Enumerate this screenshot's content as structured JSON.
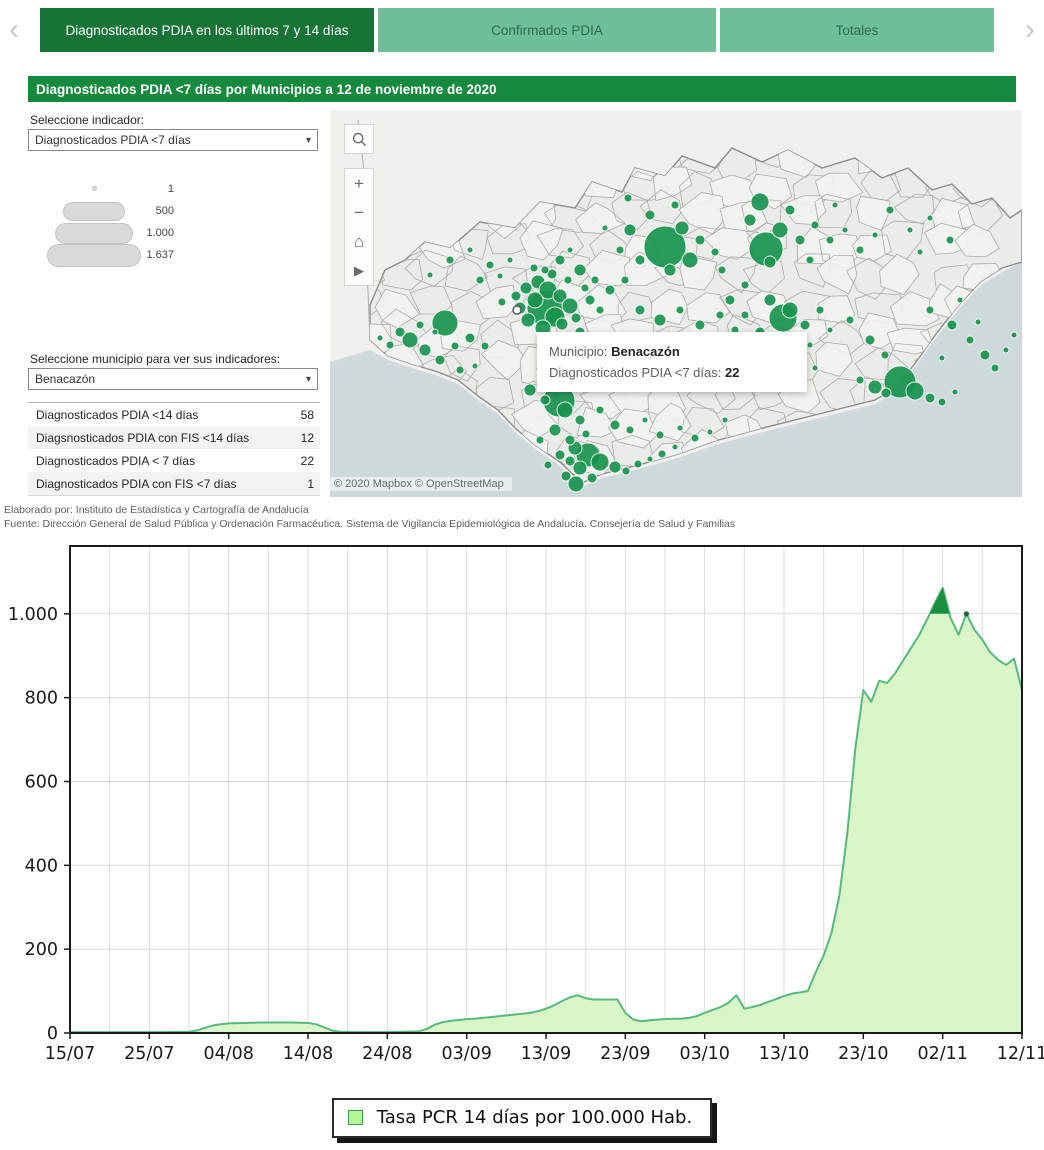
{
  "theme": {
    "header_green": "#15893d",
    "tab_active_bg": "#177436",
    "tab_inactive_bg": "#6fbf9b",
    "bubble_green": "#18944e",
    "sea_color": "#cdd9db",
    "land_color": "#ebebe9"
  },
  "tabs": {
    "prev_icon": "‹",
    "next_icon": "›",
    "items": [
      {
        "label": "Diagnosticados PDIA en los últimos 7 y 14 días",
        "active": true
      },
      {
        "label": "Confirmados PDIA",
        "active": false
      },
      {
        "label": "Totales",
        "active": false
      }
    ]
  },
  "panel_header": {
    "title": "Diagnosticados PDIA <7 días por Municipios a 12 de noviembre de 2020"
  },
  "sidebar": {
    "indicator_label": "Seleccione indicador:",
    "indicator_value": "Diagnosticados PDIA <7 días",
    "dropdown_arrow": "▾",
    "size_legend": [
      {
        "label": "1"
      },
      {
        "label": "500"
      },
      {
        "label": "1.000"
      },
      {
        "label": "1.637"
      }
    ],
    "municipio_label": "Seleccione municipio para ver sus indicadores:",
    "municipio_value": "Benacazón",
    "indicators_table": [
      {
        "label": "Diagnosticados PDIA <14 días",
        "value": "58"
      },
      {
        "label": "Diagsnosticados PDIA con FIS <14 días",
        "value": "12"
      },
      {
        "label": "Diagnosticados PDIA < 7 días",
        "value": "22"
      },
      {
        "label": "Diagnosticados PDIA con FIS <7 días",
        "value": "1"
      }
    ]
  },
  "map": {
    "tooltip": {
      "line1_label": "Municipio: ",
      "line1_value": "Benacazón",
      "line2_label": "Diagnosticados PDIA <7 días: ",
      "line2_value": "22"
    },
    "attribution": "© 2020 Mapbox  © OpenStreetMap",
    "controls": {
      "zoom_in": "+",
      "zoom_out": "−",
      "home": "⌂",
      "next": "▶"
    },
    "selected_bubble": [
      187,
      200,
      4
    ],
    "bubbles": [
      [
        335,
        137,
        21
      ],
      [
        436,
        139,
        17
      ],
      [
        453,
        208,
        14
      ],
      [
        570,
        272,
        16
      ],
      [
        215,
        198,
        18
      ],
      [
        229,
        291,
        16
      ],
      [
        115,
        213,
        13
      ],
      [
        196,
        178,
        6
      ],
      [
        208,
        172,
        7
      ],
      [
        218,
        180,
        9
      ],
      [
        230,
        186,
        7
      ],
      [
        205,
        190,
        8
      ],
      [
        190,
        198,
        6
      ],
      [
        240,
        196,
        8
      ],
      [
        225,
        207,
        10
      ],
      [
        198,
        210,
        7
      ],
      [
        213,
        218,
        8
      ],
      [
        232,
        214,
        6
      ],
      [
        246,
        208,
        5
      ],
      [
        186,
        186,
        5
      ],
      [
        172,
        192,
        4
      ],
      [
        250,
        222,
        5
      ],
      [
        238,
        228,
        4
      ],
      [
        220,
        230,
        5
      ],
      [
        260,
        190,
        5
      ],
      [
        255,
        178,
        4
      ],
      [
        270,
        200,
        4
      ],
      [
        204,
        158,
        4
      ],
      [
        222,
        164,
        5
      ],
      [
        238,
        170,
        4
      ],
      [
        300,
        120,
        6
      ],
      [
        320,
        105,
        5
      ],
      [
        352,
        118,
        7
      ],
      [
        360,
        150,
        8
      ],
      [
        340,
        160,
        6
      ],
      [
        310,
        150,
        5
      ],
      [
        290,
        140,
        4
      ],
      [
        370,
        130,
        5
      ],
      [
        385,
        142,
        4
      ],
      [
        345,
        95,
        4
      ],
      [
        298,
        88,
        4
      ],
      [
        275,
        118,
        3
      ],
      [
        420,
        110,
        6
      ],
      [
        450,
        120,
        8
      ],
      [
        470,
        130,
        5
      ],
      [
        485,
        115,
        4
      ],
      [
        460,
        100,
        5
      ],
      [
        440,
        152,
        6
      ],
      [
        480,
        150,
        4
      ],
      [
        500,
        130,
        4
      ],
      [
        515,
        120,
        3
      ],
      [
        430,
        92,
        9
      ],
      [
        530,
        140,
        4
      ],
      [
        545,
        125,
        3
      ],
      [
        560,
        100,
        4
      ],
      [
        580,
        120,
        3
      ],
      [
        600,
        108,
        3
      ],
      [
        620,
        130,
        4
      ],
      [
        590,
        142,
        3
      ],
      [
        505,
        95,
        3
      ],
      [
        440,
        190,
        6
      ],
      [
        460,
        200,
        8
      ],
      [
        475,
        215,
        5
      ],
      [
        490,
        200,
        4
      ],
      [
        430,
        222,
        5
      ],
      [
        465,
        230,
        4
      ],
      [
        500,
        220,
        3
      ],
      [
        520,
        210,
        4
      ],
      [
        540,
        230,
        5
      ],
      [
        555,
        245,
        4
      ],
      [
        415,
        205,
        4
      ],
      [
        480,
        235,
        3
      ],
      [
        600,
        200,
        4
      ],
      [
        622,
        215,
        5
      ],
      [
        640,
        230,
        4
      ],
      [
        655,
        245,
        5
      ],
      [
        665,
        258,
        4
      ],
      [
        630,
        190,
        3
      ],
      [
        612,
        248,
        3
      ],
      [
        648,
        212,
        3
      ],
      [
        676,
        240,
        3
      ],
      [
        684,
        225,
        3
      ],
      [
        545,
        277,
        7
      ],
      [
        556,
        283,
        5
      ],
      [
        585,
        281,
        9
      ],
      [
        600,
        288,
        5
      ],
      [
        612,
        292,
        4
      ],
      [
        530,
        270,
        4
      ],
      [
        625,
        282,
        3
      ],
      [
        258,
        345,
        12
      ],
      [
        270,
        352,
        9
      ],
      [
        245,
        338,
        7
      ],
      [
        285,
        357,
        6
      ],
      [
        296,
        361,
        4
      ],
      [
        240,
        351,
        5
      ],
      [
        308,
        354,
        4
      ],
      [
        320,
        349,
        3
      ],
      [
        332,
        344,
        4
      ],
      [
        345,
        337,
        3
      ],
      [
        300,
        320,
        4
      ],
      [
        315,
        310,
        3
      ],
      [
        330,
        325,
        4
      ],
      [
        285,
        315,
        5
      ],
      [
        270,
        300,
        4
      ],
      [
        350,
        318,
        3
      ],
      [
        365,
        328,
        4
      ],
      [
        380,
        322,
        3
      ],
      [
        395,
        310,
        3
      ],
      [
        200,
        280,
        6
      ],
      [
        215,
        290,
        5
      ],
      [
        235,
        300,
        8
      ],
      [
        250,
        310,
        5
      ],
      [
        225,
        320,
        6
      ],
      [
        210,
        330,
        4
      ],
      [
        240,
        330,
        5
      ],
      [
        256,
        324,
        4
      ],
      [
        230,
        345,
        5
      ],
      [
        218,
        355,
        4
      ],
      [
        250,
        358,
        7
      ],
      [
        262,
        368,
        5
      ],
      [
        246,
        374,
        8
      ],
      [
        236,
        366,
        5
      ],
      [
        80,
        230,
        8
      ],
      [
        95,
        240,
        6
      ],
      [
        110,
        250,
        5
      ],
      [
        70,
        222,
        5
      ],
      [
        60,
        235,
        4
      ],
      [
        125,
        236,
        4
      ],
      [
        140,
        228,
        5
      ],
      [
        155,
        236,
        4
      ],
      [
        90,
        215,
        4
      ],
      [
        105,
        222,
        3
      ],
      [
        130,
        260,
        4
      ],
      [
        145,
        256,
        3
      ],
      [
        50,
        228,
        3
      ],
      [
        120,
        150,
        4
      ],
      [
        140,
        140,
        3
      ],
      [
        160,
        155,
        4
      ],
      [
        100,
        165,
        3
      ],
      [
        180,
        150,
        3
      ],
      [
        150,
        170,
        4
      ],
      [
        170,
        166,
        3
      ],
      [
        230,
        150,
        5
      ],
      [
        250,
        160,
        6
      ],
      [
        265,
        170,
        4
      ],
      [
        280,
        180,
        5
      ],
      [
        295,
        170,
        4
      ],
      [
        215,
        160,
        4
      ],
      [
        240,
        140,
        3
      ],
      [
        310,
        200,
        5
      ],
      [
        330,
        210,
        6
      ],
      [
        350,
        200,
        4
      ],
      [
        370,
        215,
        5
      ],
      [
        390,
        205,
        4
      ],
      [
        405,
        220,
        4
      ],
      [
        310,
        230,
        4
      ],
      [
        335,
        235,
        5
      ],
      [
        360,
        240,
        4
      ],
      [
        385,
        235,
        3
      ],
      [
        400,
        190,
        5
      ],
      [
        415,
        175,
        4
      ],
      [
        392,
        160,
        4
      ],
      [
        260,
        240,
        4
      ],
      [
        280,
        250,
        5
      ],
      [
        300,
        260,
        4
      ],
      [
        320,
        268,
        4
      ],
      [
        340,
        262,
        3
      ],
      [
        360,
        268,
        4
      ],
      [
        380,
        260,
        3
      ],
      [
        420,
        250,
        4
      ],
      [
        440,
        258,
        3
      ],
      [
        460,
        252,
        4
      ],
      [
        485,
        258,
        3
      ]
    ]
  },
  "footer_notes": {
    "line1": "Elaborado por: Instituto de Estadística y Cartografía de Andalucía",
    "line2": "Fuente: Dirección General de Salud Pública y Ordenación Farmacéutica. Sistema de Vigilancia Epidemiológica de Andalucía. Consejería de Salud y Familias"
  },
  "chart_data": {
    "type": "area",
    "title": "",
    "xlabel": "",
    "ylabel": "",
    "x_tick_labels": [
      "15/07",
      "25/07",
      "04/08",
      "14/08",
      "24/08",
      "03/09",
      "13/09",
      "23/09",
      "03/10",
      "13/10",
      "23/10",
      "02/11",
      "12/11"
    ],
    "x_tick_days": [
      0,
      10,
      20,
      30,
      40,
      50,
      60,
      70,
      80,
      90,
      100,
      110,
      120
    ],
    "minor_grid_step_days": 5,
    "y_ticks": [
      0,
      200,
      400,
      600,
      800,
      1000
    ],
    "y_tick_labels": [
      "0",
      "200",
      "400",
      "600",
      "800",
      "1.000"
    ],
    "ylim": [
      0,
      1162
    ],
    "grid": true,
    "legend_position": "bottom",
    "series": [
      {
        "name": "Tasa PCR 14 días por 100.000 Hab.",
        "points": [
          [
            0,
            2
          ],
          [
            4,
            2
          ],
          [
            8,
            2
          ],
          [
            12,
            2
          ],
          [
            15,
            3
          ],
          [
            16,
            6
          ],
          [
            17,
            12
          ],
          [
            18,
            18
          ],
          [
            19,
            21
          ],
          [
            20,
            23
          ],
          [
            22,
            24
          ],
          [
            24,
            25
          ],
          [
            26,
            25
          ],
          [
            28,
            25
          ],
          [
            30,
            24
          ],
          [
            31,
            21
          ],
          [
            32,
            14
          ],
          [
            33,
            6
          ],
          [
            34,
            3
          ],
          [
            36,
            2
          ],
          [
            40,
            2
          ],
          [
            44,
            4
          ],
          [
            45,
            10
          ],
          [
            46,
            20
          ],
          [
            47,
            26
          ],
          [
            48,
            29
          ],
          [
            49,
            31
          ],
          [
            50,
            33
          ],
          [
            51,
            34
          ],
          [
            52,
            36
          ],
          [
            53,
            38
          ],
          [
            54,
            40
          ],
          [
            55,
            42
          ],
          [
            56,
            44
          ],
          [
            57,
            46
          ],
          [
            58,
            48
          ],
          [
            59,
            52
          ],
          [
            60,
            58
          ],
          [
            61,
            66
          ],
          [
            62,
            76
          ],
          [
            63,
            85
          ],
          [
            64,
            90
          ],
          [
            65,
            83
          ],
          [
            66,
            80
          ],
          [
            67,
            80
          ],
          [
            68,
            80
          ],
          [
            69,
            80
          ],
          [
            70,
            48
          ],
          [
            71,
            32
          ],
          [
            72,
            28
          ],
          [
            73,
            30
          ],
          [
            74,
            32
          ],
          [
            75,
            33
          ],
          [
            76,
            34
          ],
          [
            77,
            34
          ],
          [
            78,
            36
          ],
          [
            79,
            40
          ],
          [
            80,
            48
          ],
          [
            81,
            55
          ],
          [
            82,
            62
          ],
          [
            83,
            72
          ],
          [
            84,
            90
          ],
          [
            85,
            58
          ],
          [
            86,
            62
          ],
          [
            87,
            67
          ],
          [
            88,
            74
          ],
          [
            89,
            81
          ],
          [
            90,
            88
          ],
          [
            91,
            94
          ],
          [
            92,
            97
          ],
          [
            93,
            100
          ],
          [
            94,
            145
          ],
          [
            95,
            185
          ],
          [
            96,
            240
          ],
          [
            97,
            330
          ],
          [
            98,
            480
          ],
          [
            99,
            680
          ],
          [
            100,
            818
          ],
          [
            101,
            790
          ],
          [
            102,
            840
          ],
          [
            103,
            835
          ],
          [
            104,
            858
          ],
          [
            105,
            888
          ],
          [
            106,
            918
          ],
          [
            107,
            948
          ],
          [
            108,
            985
          ],
          [
            109,
            1025
          ],
          [
            110,
            1062
          ],
          [
            111,
            990
          ],
          [
            112,
            950
          ],
          [
            113,
            1000
          ],
          [
            114,
            962
          ],
          [
            115,
            938
          ],
          [
            116,
            908
          ],
          [
            117,
            890
          ],
          [
            118,
            878
          ],
          [
            119,
            893
          ],
          [
            120,
            818
          ]
        ]
      }
    ],
    "peak_highlight_threshold": 1000,
    "peak_marker": {
      "day": 113,
      "value": 1000
    },
    "fill_color": "#d9f6c8",
    "line_color": "#57b97e",
    "peak_cap_color": "#17913f",
    "legend": {
      "label": "Tasa PCR 14 días por 100.000 Hab."
    }
  }
}
